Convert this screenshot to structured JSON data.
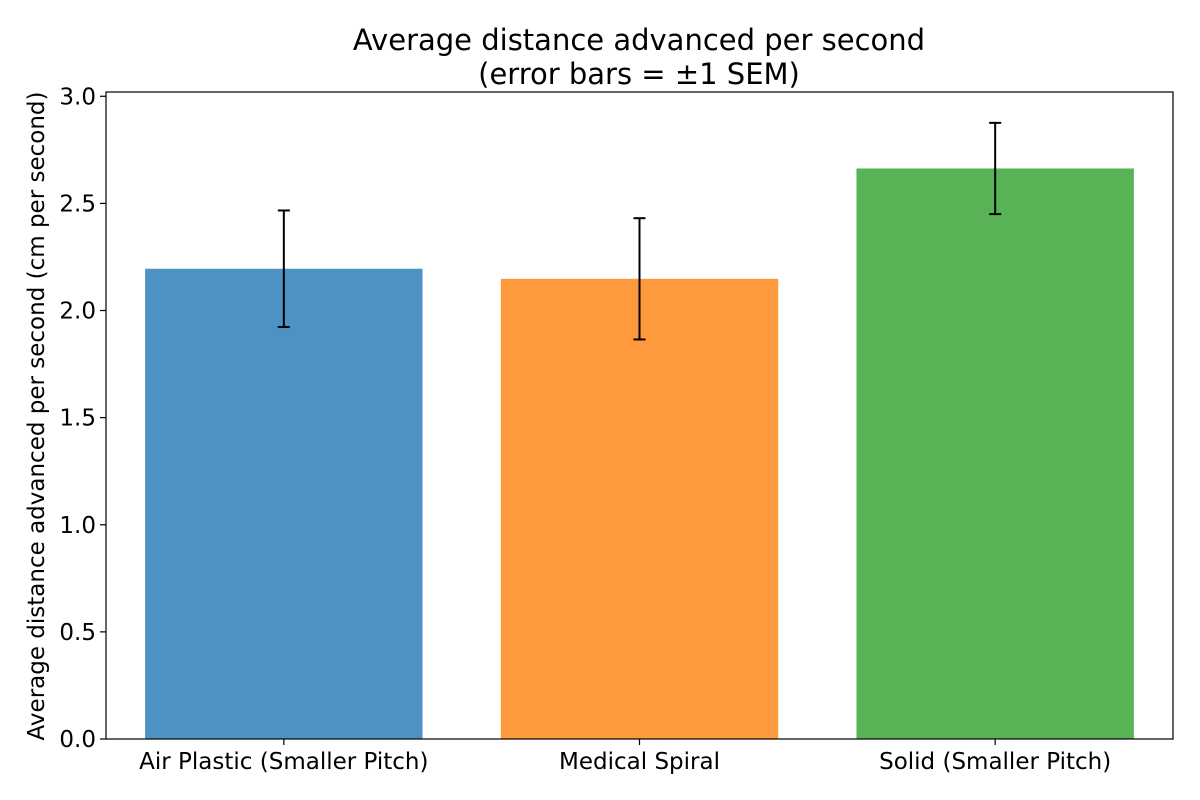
{
  "chart_data": {
    "type": "bar",
    "title": "Average distance advanced per second",
    "subtitle": "(error bars = ±1 SEM)",
    "xlabel": "",
    "ylabel": "Average distance advanced per second (cm per second)",
    "categories": [
      "Air Plastic (Smaller Pitch)",
      "Medical Spiral",
      "Solid (Smaller Pitch)"
    ],
    "values": [
      2.195,
      2.148,
      2.663
    ],
    "errors": [
      0.272,
      0.283,
      0.213
    ],
    "colors": [
      "#4c92c3",
      "#ff993e",
      "#57b356"
    ],
    "ylim": [
      0,
      3.02
    ],
    "yticks": [
      0.0,
      0.5,
      1.0,
      1.5,
      2.0,
      2.5,
      3.0
    ],
    "ytick_labels": [
      "0.0",
      "0.5",
      "1.0",
      "1.5",
      "2.0",
      "2.5",
      "3.0"
    ],
    "grid": false,
    "legend": "none"
  }
}
